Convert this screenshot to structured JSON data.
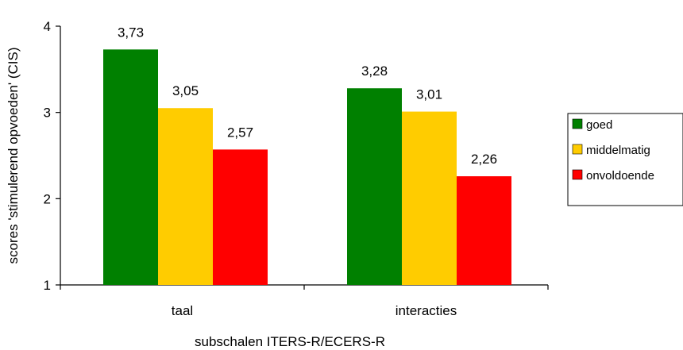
{
  "chart_data": {
    "type": "bar",
    "categories": [
      "taal",
      "interacties"
    ],
    "series": [
      {
        "name": "goed",
        "values": [
          3.73,
          3.28
        ]
      },
      {
        "name": "middelmatig",
        "values": [
          3.05,
          3.01
        ]
      },
      {
        "name": "onvoldoende",
        "values": [
          2.57,
          2.26
        ]
      }
    ],
    "data_labels": [
      [
        "3,73",
        "3,28"
      ],
      [
        "3,05",
        "3,01"
      ],
      [
        "2,57",
        "2,26"
      ]
    ],
    "xlabel": "subschalen ITERS-R/ECERS-R",
    "ylabel": "scores 'stimulerend opvoeden' (CIS)",
    "ylim": [
      1,
      4
    ],
    "yticks": [
      1,
      2,
      3,
      4
    ],
    "grid": false,
    "legend_position": "right",
    "colors": {
      "goed": "#008000",
      "middelmatig": "#FFCC00",
      "onvoldoende": "#FF0000"
    }
  }
}
